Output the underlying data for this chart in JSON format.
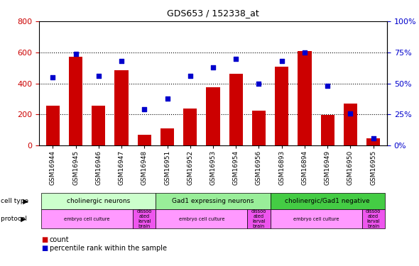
{
  "title": "GDS653 / 152338_at",
  "samples": [
    "GSM16944",
    "GSM16945",
    "GSM16946",
    "GSM16947",
    "GSM16948",
    "GSM16951",
    "GSM16952",
    "GSM16953",
    "GSM16954",
    "GSM16956",
    "GSM16893",
    "GSM16894",
    "GSM16949",
    "GSM16950",
    "GSM16955"
  ],
  "counts": [
    258,
    570,
    255,
    485,
    68,
    110,
    240,
    375,
    460,
    223,
    508,
    610,
    195,
    268,
    48
  ],
  "percentiles": [
    55,
    74,
    56,
    68,
    29,
    38,
    56,
    63,
    70,
    50,
    68,
    75,
    48,
    26,
    6
  ],
  "bar_color": "#cc0000",
  "dot_color": "#0000cc",
  "ylim_left": [
    0,
    800
  ],
  "ylim_right": [
    0,
    100
  ],
  "yticks_left": [
    0,
    200,
    400,
    600,
    800
  ],
  "ytick_labels_right": [
    "0%",
    "25%",
    "50%",
    "75%",
    "100%"
  ],
  "cell_type_groups": [
    {
      "label": "cholinergic neurons",
      "start": 0,
      "end": 5,
      "color": "#ccffcc"
    },
    {
      "label": "Gad1 expressing neurons",
      "start": 5,
      "end": 10,
      "color": "#99ee99"
    },
    {
      "label": "cholinergic/Gad1 negative",
      "start": 10,
      "end": 15,
      "color": "#44cc44"
    }
  ],
  "protocol_groups": [
    {
      "label": "embryo cell culture",
      "start": 0,
      "end": 4,
      "color": "#ff99ff"
    },
    {
      "label": "dissoo\nated\nlarval\nbrain",
      "start": 4,
      "end": 5,
      "color": "#ee55ee"
    },
    {
      "label": "embryo cell culture",
      "start": 5,
      "end": 9,
      "color": "#ff99ff"
    },
    {
      "label": "dissoo\nated\nlarval\nbrain",
      "start": 9,
      "end": 10,
      "color": "#ee55ee"
    },
    {
      "label": "embryo cell culture",
      "start": 10,
      "end": 14,
      "color": "#ff99ff"
    },
    {
      "label": "dissoo\nated\nlarval\nbrain",
      "start": 14,
      "end": 15,
      "color": "#ee55ee"
    }
  ],
  "background_color": "#ffffff",
  "tick_label_color_left": "#cc0000",
  "tick_label_color_right": "#0000cc"
}
